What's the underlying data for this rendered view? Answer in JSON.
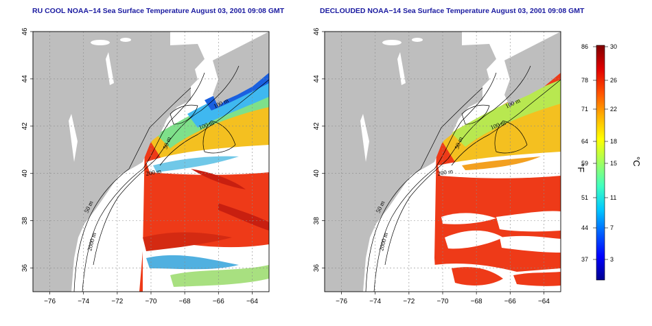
{
  "panels": [
    {
      "id": "left",
      "title": "RU COOL NOAA−14 Sea Surface Temperature August 03, 2001 09:08 GMT",
      "clouded": true
    },
    {
      "id": "right",
      "title": "DECLOUDED NOAA−14 Sea Surface Temperature August 03, 2001 09:08 GMT",
      "clouded": false
    }
  ],
  "axes": {
    "lon_ticks": [
      "−76",
      "−74",
      "−72",
      "−70",
      "−68",
      "−66",
      "−64"
    ],
    "lat_ticks": [
      "36",
      "38",
      "40",
      "42",
      "44",
      "46"
    ],
    "lon_range": [
      -77,
      -63
    ],
    "lat_range": [
      35,
      46
    ]
  },
  "contour_labels": [
    "100 m",
    "100 m",
    "50 m",
    "200 m",
    "50 m",
    "2000 m"
  ],
  "colorbar": {
    "fahrenheit_unit": "°F",
    "celsius_unit": "°C",
    "fahrenheit_ticks": [
      "86",
      "78",
      "71",
      "64",
      "59",
      "51",
      "44",
      "37"
    ],
    "celsius_ticks": [
      "30",
      "26",
      "22",
      "18",
      "15",
      "11",
      "7",
      "3"
    ],
    "colors": [
      "#00008f",
      "#0000ff",
      "#0060ff",
      "#00c8ff",
      "#40ffc0",
      "#a0ff60",
      "#ffff00",
      "#ffb000",
      "#ff5000",
      "#e00000",
      "#800000"
    ]
  },
  "colors": {
    "land": "#bebebe",
    "warm_sst": "#ee3a18",
    "title": "#1a1aa0"
  }
}
